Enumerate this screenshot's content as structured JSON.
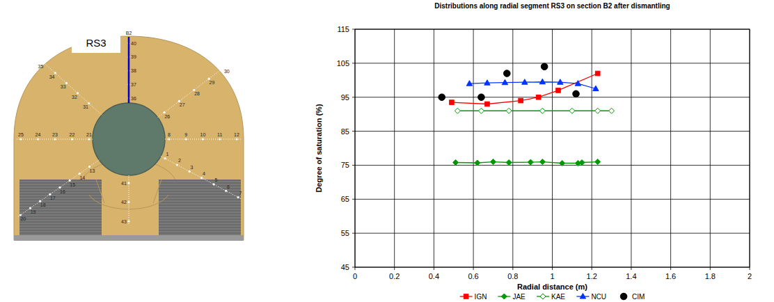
{
  "chart_data": {
    "type": "line",
    "title": "Distributions along radial segment RS3 on section B2 after dismantling",
    "x_label": "Radial distance (m)",
    "y_label": "Degree of saturation (%)",
    "xlim": [
      0,
      2
    ],
    "xticks": [
      0,
      0.2,
      0.4,
      0.6,
      0.8,
      1,
      1.2,
      1.4,
      1.6,
      1.8,
      2
    ],
    "ylim": [
      45,
      115
    ],
    "yticks": [
      45,
      55,
      65,
      75,
      85,
      95,
      105,
      115
    ],
    "grid": true,
    "legend": "bottom",
    "series": [
      {
        "name": "IGN",
        "color": "#ff0000",
        "marker": "square",
        "line_style": "solid",
        "x": [
          0.49,
          0.67,
          0.84,
          0.93,
          1.03,
          1.23
        ],
        "values": [
          93.5,
          93,
          94,
          95,
          97,
          102
        ]
      },
      {
        "name": "JAE",
        "color": "#009900",
        "marker": "diamond",
        "line_style": "solid",
        "x": [
          0.51,
          0.62,
          0.7,
          0.78,
          0.89,
          0.95,
          1.05,
          1.13,
          1.15,
          1.23
        ],
        "values": [
          75.8,
          75.7,
          76,
          75.8,
          75.9,
          76,
          75.6,
          75.6,
          75.8,
          76
        ]
      },
      {
        "name": "KAE",
        "color": "#009900",
        "marker": "diamond-open",
        "line_style": "solid",
        "x": [
          0.52,
          0.64,
          0.78,
          0.95,
          1.1,
          1.23,
          1.3
        ],
        "values": [
          91,
          91,
          91,
          91,
          91,
          91,
          91
        ]
      },
      {
        "name": "NCU",
        "color": "#0033ff",
        "marker": "triangle",
        "line_style": "solid",
        "x": [
          0.58,
          0.67,
          0.76,
          0.86,
          0.95,
          1.04,
          1.13,
          1.22
        ],
        "values": [
          99,
          99.2,
          99.3,
          99.4,
          99.5,
          99.4,
          99,
          97.5
        ]
      },
      {
        "name": "CIM",
        "color": "#000000",
        "marker": "circle",
        "line_style": "none",
        "x": [
          0.44,
          0.64,
          0.77,
          0.96,
          1.12
        ],
        "values": [
          95,
          95,
          102,
          104,
          96
        ]
      }
    ]
  },
  "section_diagram": {
    "section": "B2",
    "segment_label": "RS3",
    "segments": [
      {
        "labels": [
          "36",
          "37",
          "38",
          "39",
          "40"
        ]
      },
      {
        "labels": [
          "26",
          "27",
          "28",
          "29",
          "30"
        ]
      },
      {
        "labels": [
          "8",
          "9",
          "10",
          "11",
          "12"
        ]
      },
      {
        "labels": [
          "1",
          "2",
          "3",
          "4",
          "5",
          "6",
          "7"
        ]
      },
      {
        "labels": [
          "41",
          "42",
          "43"
        ]
      },
      {
        "labels": [
          "13",
          "14",
          "15",
          "16",
          "17",
          "18",
          "19",
          "20"
        ]
      },
      {
        "labels": [
          "21",
          "22",
          "23",
          "24",
          "25"
        ]
      },
      {
        "labels": [
          "31",
          "32",
          "33",
          "34",
          "35"
        ]
      }
    ]
  }
}
